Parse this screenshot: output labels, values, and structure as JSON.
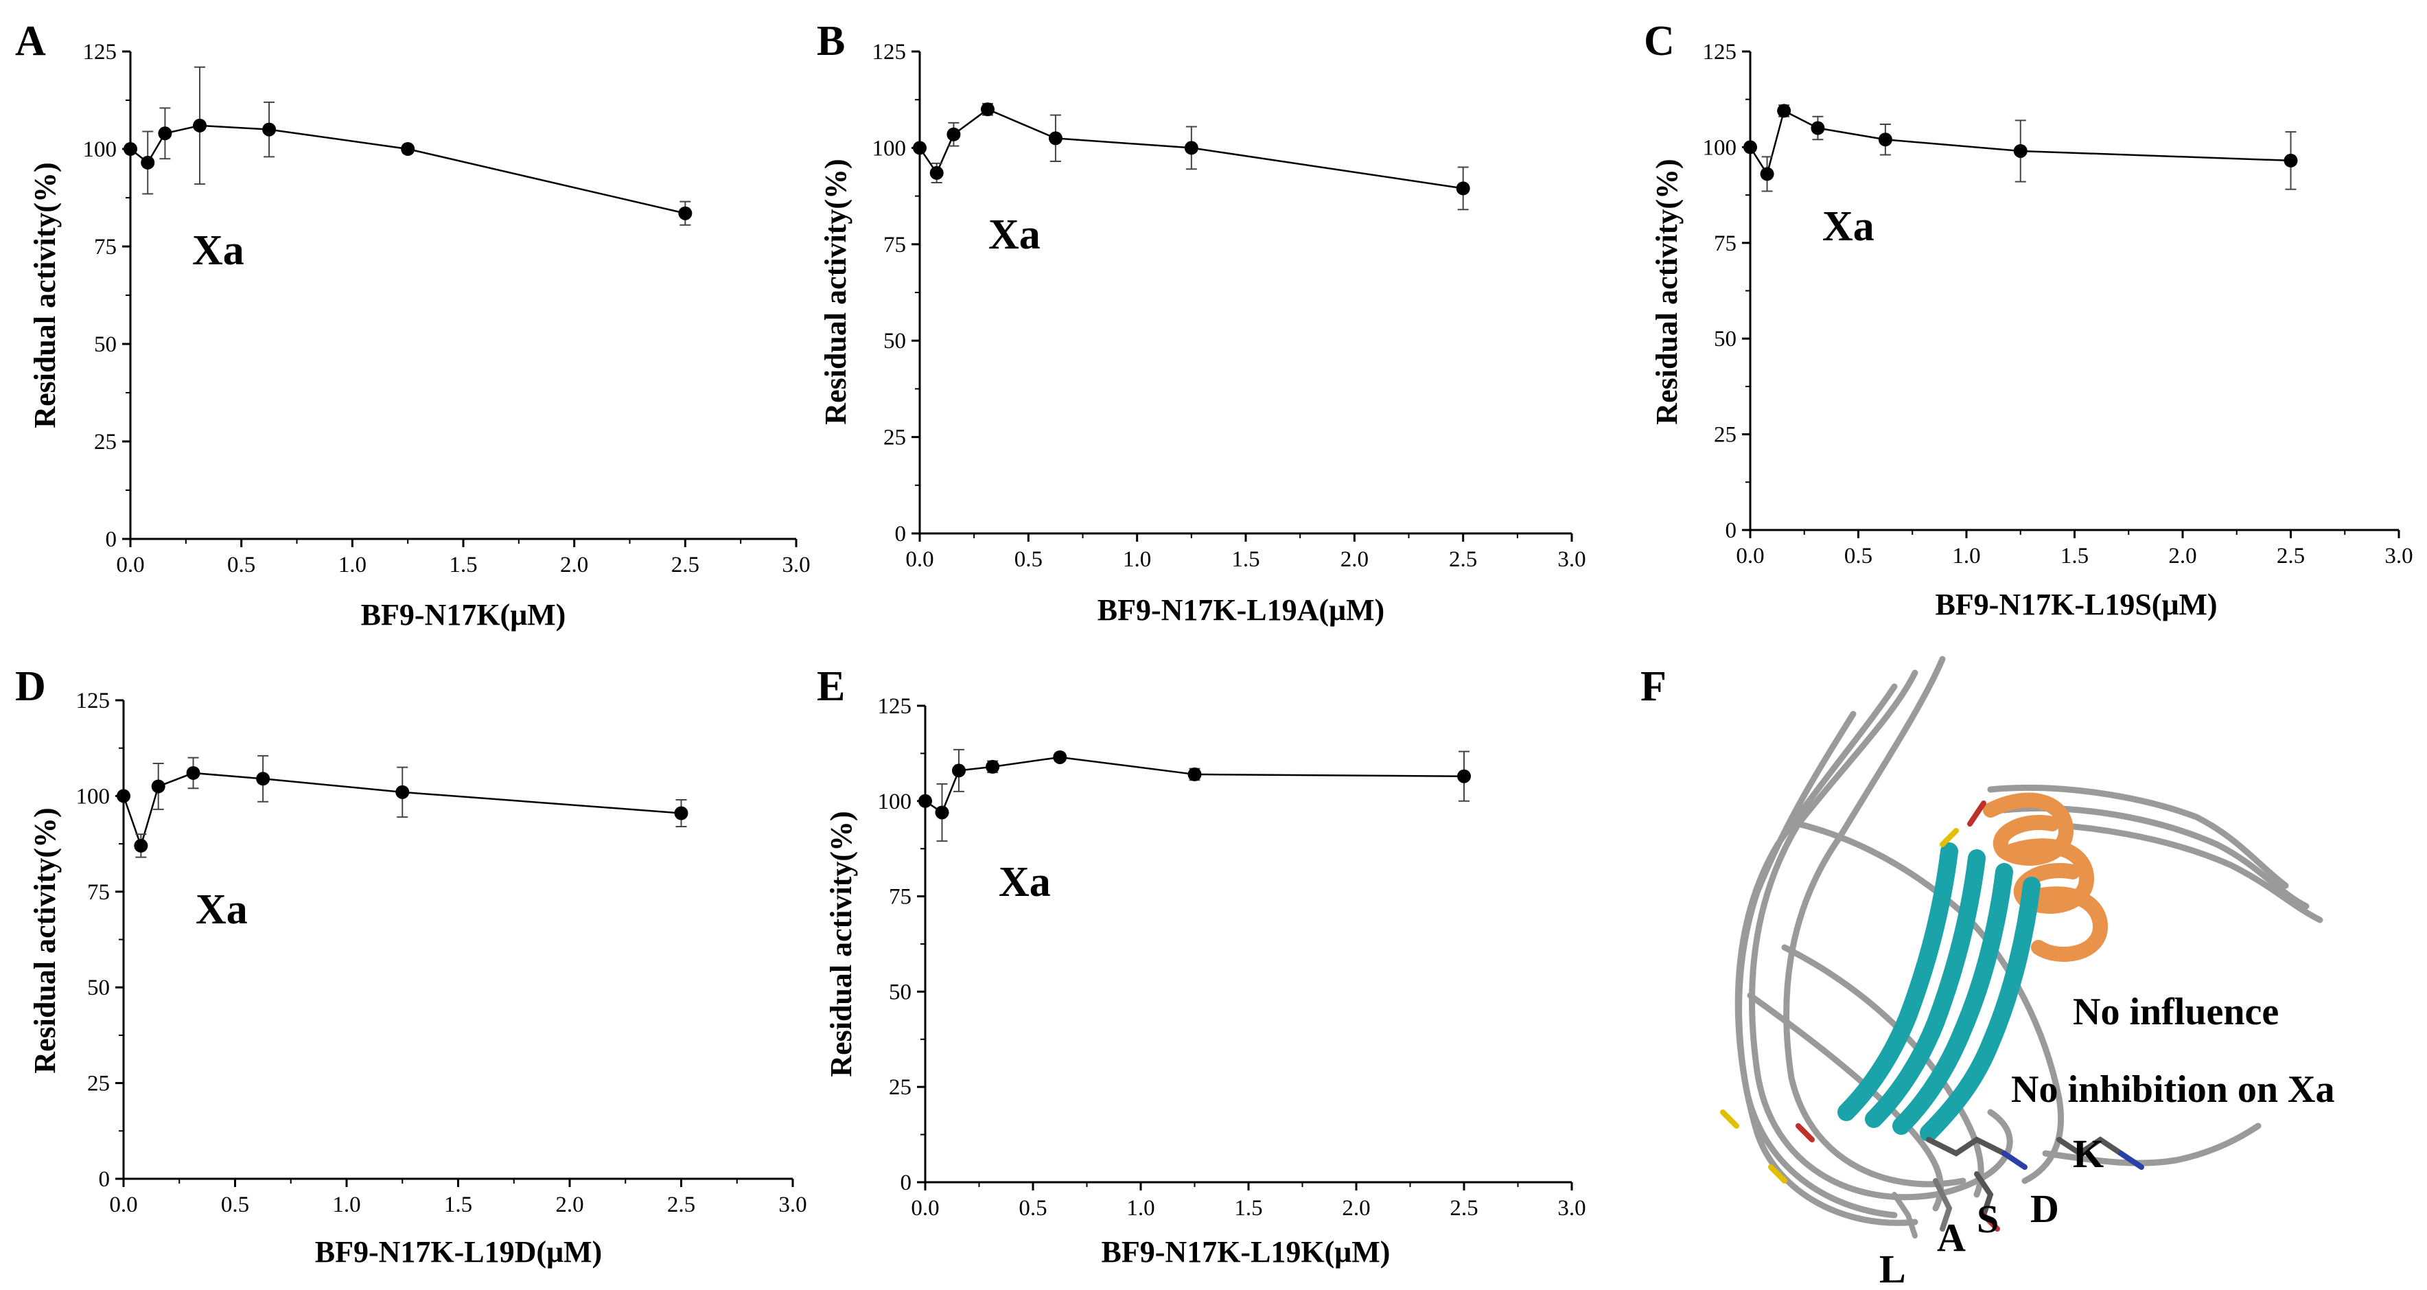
{
  "chart_data": [
    {
      "panel": "A",
      "type": "line",
      "xlabel": "BF9-N17K(μM)",
      "ylabel": "Residual activity(%)",
      "annotation": "Xa",
      "xlim": [
        0,
        3.0
      ],
      "ylim": [
        0,
        125
      ],
      "xticks": [
        "0.0",
        "0.5",
        "1.0",
        "1.5",
        "2.0",
        "2.5",
        "3.0"
      ],
      "yticks": [
        "0",
        "25",
        "50",
        "75",
        "100",
        "125"
      ],
      "series": [
        {
          "name": "Xa",
          "x": [
            0,
            0.078,
            0.156,
            0.3125,
            0.625,
            1.25,
            2.5
          ],
          "y": [
            100,
            96.5,
            104,
            106,
            105,
            100,
            83.5
          ],
          "err": [
            0,
            8,
            6.5,
            15,
            7,
            1,
            3
          ]
        }
      ]
    },
    {
      "panel": "B",
      "type": "line",
      "xlabel": "BF9-N17K-L19A(μM)",
      "ylabel": "Residual activity(%)",
      "annotation": "Xa",
      "xlim": [
        0,
        3.0
      ],
      "ylim": [
        0,
        125
      ],
      "xticks": [
        "0.0",
        "0.5",
        "1.0",
        "1.5",
        "2.0",
        "2.5",
        "3.0"
      ],
      "yticks": [
        "0",
        "25",
        "50",
        "75",
        "100",
        "125"
      ],
      "series": [
        {
          "name": "Xa",
          "x": [
            0,
            0.078,
            0.156,
            0.3125,
            0.625,
            1.25,
            2.5
          ],
          "y": [
            100,
            93.5,
            103.5,
            110,
            102.5,
            100,
            89.5
          ],
          "err": [
            0,
            2.5,
            3,
            1.5,
            6,
            5.5,
            5.5
          ]
        }
      ]
    },
    {
      "panel": "C",
      "type": "line",
      "xlabel": "BF9-N17K-L19S(μM)",
      "ylabel": "Residual activity(%)",
      "annotation": "Xa",
      "xlim": [
        0,
        3.0
      ],
      "ylim": [
        0,
        125
      ],
      "xticks": [
        "0.0",
        "0.5",
        "1.0",
        "1.5",
        "2.0",
        "2.5",
        "3.0"
      ],
      "yticks": [
        "0",
        "25",
        "50",
        "75",
        "100",
        "125"
      ],
      "series": [
        {
          "name": "Xa",
          "x": [
            0,
            0.078,
            0.156,
            0.3125,
            0.625,
            1.25,
            2.5
          ],
          "y": [
            100,
            93,
            109.5,
            105,
            102,
            99,
            96.5
          ],
          "err": [
            0,
            4.5,
            1.5,
            3,
            4,
            8,
            7.5
          ]
        }
      ]
    },
    {
      "panel": "D",
      "type": "line",
      "xlabel": "BF9-N17K-L19D(μM)",
      "ylabel": "Residual activity(%)",
      "annotation": "Xa",
      "xlim": [
        0,
        3.0
      ],
      "ylim": [
        0,
        125
      ],
      "xticks": [
        "0.0",
        "0.5",
        "1.0",
        "1.5",
        "2.0",
        "2.5",
        "3.0"
      ],
      "yticks": [
        "0",
        "25",
        "50",
        "75",
        "100",
        "125"
      ],
      "series": [
        {
          "name": "Xa",
          "x": [
            0,
            0.078,
            0.156,
            0.3125,
            0.625,
            1.25,
            2.5
          ],
          "y": [
            100,
            87,
            102.5,
            106,
            104.5,
            101,
            95.5
          ],
          "err": [
            0,
            3,
            6,
            4,
            6,
            6.5,
            3.5
          ]
        }
      ]
    },
    {
      "panel": "E",
      "type": "line",
      "xlabel": "BF9-N17K-L19K(μM)",
      "ylabel": "Residual activity(%)",
      "annotation": "Xa",
      "xlim": [
        0,
        3.0
      ],
      "ylim": [
        0,
        125
      ],
      "xticks": [
        "0.0",
        "0.5",
        "1.0",
        "1.5",
        "2.0",
        "2.5",
        "3.0"
      ],
      "yticks": [
        "0",
        "25",
        "50",
        "75",
        "100",
        "125"
      ],
      "series": [
        {
          "name": "Xa",
          "x": [
            0,
            0.078,
            0.156,
            0.3125,
            0.625,
            1.25,
            2.5
          ],
          "y": [
            100,
            97,
            108,
            109,
            111.5,
            107,
            106.5
          ],
          "err": [
            0,
            7.5,
            5.5,
            1.5,
            1,
            1.5,
            6.5
          ]
        }
      ]
    }
  ],
  "structure_panel": {
    "panel": "F",
    "labels": [
      "No influence",
      "No inhibition on Xa"
    ],
    "residues": [
      "K",
      "D",
      "S",
      "A",
      "L"
    ],
    "colors": {
      "helix": "#e8924a",
      "strand": "#1aa3a8",
      "coil": "#9a9a9a"
    }
  }
}
